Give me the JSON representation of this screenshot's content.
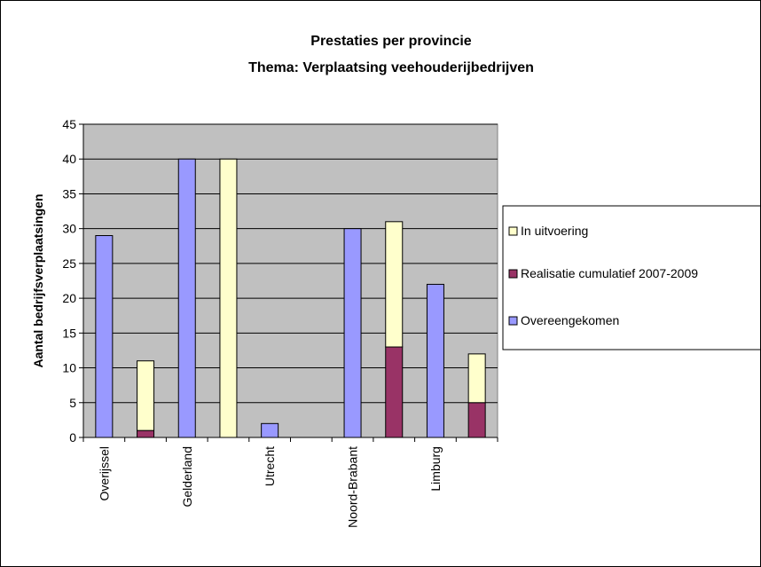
{
  "chart_data": {
    "type": "bar",
    "title": [
      "Prestaties per provincie",
      "Thema:  Verplaatsing veehouderijbedrijven"
    ],
    "ylabel": "Aantal bedrijfsverplaatsingen",
    "xlabel": "",
    "ylim": [
      0,
      45
    ],
    "yticks": [
      0,
      5,
      10,
      15,
      20,
      25,
      30,
      35,
      40,
      45
    ],
    "grid": true,
    "legend_position": "right",
    "categories": [
      "Overijssel",
      "",
      "Gelderland",
      "",
      "Utrecht",
      "",
      "Noord-Brabant",
      "",
      "Limburg",
      ""
    ],
    "series": [
      {
        "name": "Overeengekomen",
        "color": "#9999ff",
        "values": [
          29,
          0,
          40,
          0,
          2,
          0,
          30,
          0,
          22,
          0
        ]
      },
      {
        "name": "Realisatie cumulatief 2007-2009",
        "color": "#993366",
        "values": [
          0,
          1,
          0,
          0,
          0,
          0,
          0,
          13,
          0,
          5
        ]
      },
      {
        "name": "In uitvoering",
        "color": "#ffffcc",
        "values": [
          0,
          10,
          0,
          40,
          0,
          0,
          0,
          18,
          0,
          7
        ]
      }
    ],
    "legend_order": [
      "In uitvoering",
      "Realisatie cumulatief 2007-2009",
      "Overeengekomen"
    ],
    "plot_background": "#c0c0c0"
  }
}
